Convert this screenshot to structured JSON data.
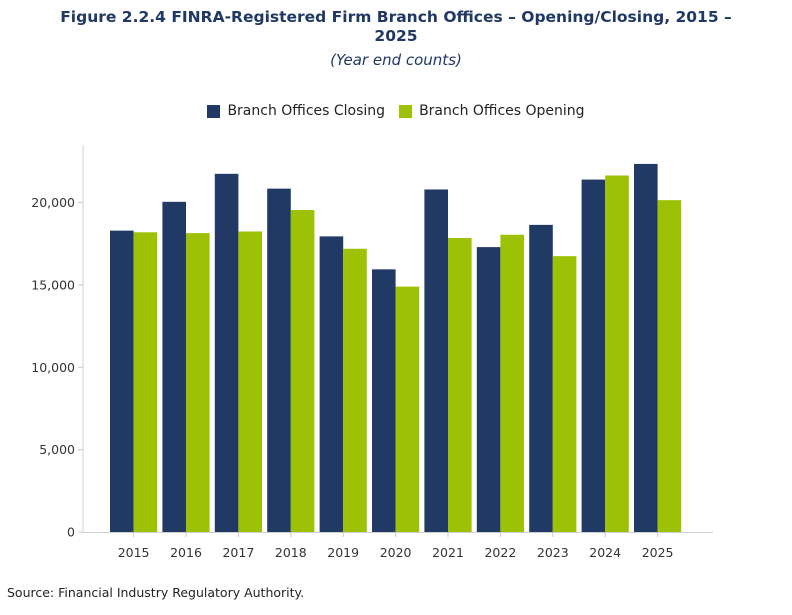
{
  "chart_data": {
    "type": "bar",
    "title": "Figure 2.2.4 FINRA-Registered Firm Branch Offices – Opening/Closing, 2015 – 2025",
    "subtitle": "(Year end counts)",
    "categories": [
      "2015",
      "2016",
      "2017",
      "2018",
      "2019",
      "2020",
      "2021",
      "2022",
      "2023",
      "2024",
      "2025"
    ],
    "series": [
      {
        "name": "Branch Offices Closing",
        "color": "#213a65",
        "values": [
          18300,
          20050,
          21750,
          20850,
          17950,
          15950,
          20800,
          17300,
          18650,
          21400,
          22350
        ]
      },
      {
        "name": "Branch Offices Opening",
        "color": "#9dc105",
        "values": [
          18200,
          18150,
          18250,
          19550,
          17200,
          14900,
          17850,
          18050,
          16750,
          21650,
          20150
        ]
      }
    ],
    "ylim": [
      0,
      23500
    ],
    "yticks": [
      0,
      5000,
      10000,
      15000,
      20000
    ],
    "ytick_labels": [
      "0",
      "5,000",
      "10,000",
      "15,000",
      "20,000"
    ],
    "xlabel": "",
    "ylabel": "",
    "legend_position": "top-center",
    "grid": false
  },
  "source": "Source: Financial Industry Regulatory Authority."
}
